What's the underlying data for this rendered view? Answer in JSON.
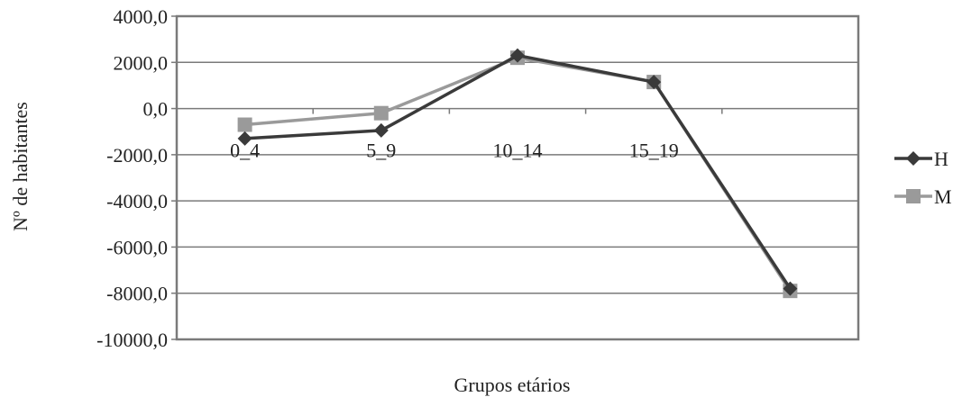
{
  "chart_data": {
    "type": "line",
    "title": "",
    "xlabel": "Grupos etários",
    "ylabel": "Nº de habitantes",
    "categories": [
      "0_4",
      "5_9",
      "10_14",
      "15_19",
      ""
    ],
    "ylim": [
      -10000,
      4000
    ],
    "yticks": [
      -10000,
      -8000,
      -6000,
      -4000,
      -2000,
      0,
      2000,
      4000
    ],
    "ytick_labels": [
      "-10000,0",
      "-8000,0",
      "-6000,0",
      "-4000,0",
      "-2000,0",
      "0,0",
      "2000,0",
      "4000,0"
    ],
    "grid": true,
    "legend_position": "right",
    "series": [
      {
        "name": "H",
        "values": [
          -1300,
          -950,
          2300,
          1150,
          -7800
        ],
        "color": "#3a3a3a",
        "marker": "diamond"
      },
      {
        "name": "M",
        "values": [
          -700,
          -200,
          2200,
          1150,
          -7900
        ],
        "color": "#9a9a9a",
        "marker": "square"
      }
    ]
  }
}
